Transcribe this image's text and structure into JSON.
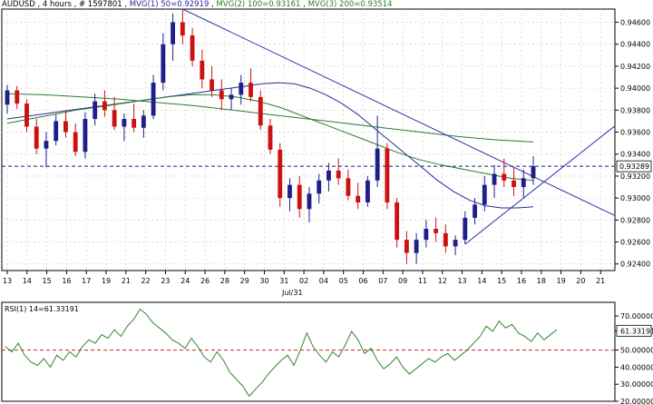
{
  "header": {
    "symbol": "AUDUSD",
    "timeframe": "4 hours",
    "bars_label": "# 1597801",
    "ma1_label": "MVG(1) 50=0.92919",
    "ma2_label": "MVG(2) 100=0.93161",
    "ma3_label": "MVG(3) 200=0.93514"
  },
  "colors": {
    "up": "#1f1f8a",
    "down": "#cc1111",
    "ma50": "#2a2a9a",
    "ma100": "#2d7a2d",
    "ma200": "#2d7a2d",
    "trendline": "#3333aa",
    "rsi": "#2d8a2d",
    "rsi_level": "#cc2222",
    "price_line": "#1f1f8a",
    "grid": "#c8c8c8",
    "frame": "#000000"
  },
  "chart_data": [
    {
      "type": "candlestick",
      "title": "AUDUSD , 4 hours , # 1597801",
      "x_tick_labels": [
        "13",
        "14",
        "15",
        "16",
        "17",
        "19",
        "21",
        "22",
        "23",
        "24",
        "26",
        "28",
        "29",
        "30",
        "31",
        "02",
        "04",
        "05",
        "06",
        "07",
        "09",
        "11",
        "12",
        "13",
        "14",
        "15",
        "16",
        "18",
        "19",
        "20",
        "21"
      ],
      "month_label": "Jul/31",
      "y_tick_labels": [
        "0.94600",
        "0.94400",
        "0.94200",
        "0.94000",
        "0.93800",
        "0.93600",
        "0.93400",
        "0.93200",
        "0.93000",
        "0.92800",
        "0.92600",
        "0.92400"
      ],
      "ylim": [
        0.9234,
        0.9472
      ],
      "last_price": "0.93289",
      "ohlc": [
        [
          0.9385,
          0.9403,
          0.9377,
          0.9398
        ],
        [
          0.9398,
          0.9402,
          0.9381,
          0.9386
        ],
        [
          0.9386,
          0.939,
          0.936,
          0.9365
        ],
        [
          0.9365,
          0.9372,
          0.934,
          0.9345
        ],
        [
          0.9345,
          0.936,
          0.9328,
          0.9352
        ],
        [
          0.9352,
          0.9376,
          0.9348,
          0.937
        ],
        [
          0.937,
          0.938,
          0.9355,
          0.936
        ],
        [
          0.936,
          0.9368,
          0.9338,
          0.9342
        ],
        [
          0.9342,
          0.9378,
          0.9336,
          0.9372
        ],
        [
          0.9372,
          0.9395,
          0.9366,
          0.9388
        ],
        [
          0.9388,
          0.9398,
          0.9374,
          0.938
        ],
        [
          0.938,
          0.9392,
          0.9362,
          0.9365
        ],
        [
          0.9365,
          0.9377,
          0.9352,
          0.9372
        ],
        [
          0.9372,
          0.9386,
          0.936,
          0.9364
        ],
        [
          0.9364,
          0.938,
          0.9355,
          0.9375
        ],
        [
          0.9375,
          0.9412,
          0.9372,
          0.9405
        ],
        [
          0.9405,
          0.945,
          0.9398,
          0.944
        ],
        [
          0.944,
          0.9468,
          0.9425,
          0.946
        ],
        [
          0.946,
          0.9472,
          0.944,
          0.9448
        ],
        [
          0.9448,
          0.9455,
          0.942,
          0.9425
        ],
        [
          0.9425,
          0.9435,
          0.94,
          0.9408
        ],
        [
          0.9408,
          0.942,
          0.9392,
          0.9398
        ],
        [
          0.9398,
          0.9408,
          0.938,
          0.939
        ],
        [
          0.939,
          0.94,
          0.938,
          0.9394
        ],
        [
          0.9394,
          0.9412,
          0.9385,
          0.9405
        ],
        [
          0.9405,
          0.9418,
          0.9388,
          0.9392
        ],
        [
          0.9392,
          0.9398,
          0.9362,
          0.9366
        ],
        [
          0.9366,
          0.9372,
          0.934,
          0.9344
        ],
        [
          0.9344,
          0.935,
          0.9292,
          0.93
        ],
        [
          0.93,
          0.9318,
          0.9288,
          0.9312
        ],
        [
          0.9312,
          0.932,
          0.9282,
          0.929
        ],
        [
          0.929,
          0.931,
          0.9278,
          0.9304
        ],
        [
          0.9304,
          0.9322,
          0.9295,
          0.9316
        ],
        [
          0.9316,
          0.9332,
          0.9306,
          0.9325
        ],
        [
          0.9325,
          0.9336,
          0.9312,
          0.9318
        ],
        [
          0.9318,
          0.9326,
          0.9298,
          0.9302
        ],
        [
          0.9302,
          0.9314,
          0.929,
          0.9296
        ],
        [
          0.9296,
          0.932,
          0.9292,
          0.9316
        ],
        [
          0.9316,
          0.9375,
          0.931,
          0.9345
        ],
        [
          0.9345,
          0.935,
          0.929,
          0.9296
        ],
        [
          0.9296,
          0.93,
          0.9255,
          0.9262
        ],
        [
          0.9262,
          0.927,
          0.924,
          0.925
        ],
        [
          0.925,
          0.9268,
          0.924,
          0.9262
        ],
        [
          0.9262,
          0.928,
          0.9255,
          0.9272
        ],
        [
          0.9272,
          0.9282,
          0.926,
          0.9268
        ],
        [
          0.9268,
          0.9276,
          0.925,
          0.9256
        ],
        [
          0.9256,
          0.9266,
          0.9248,
          0.9262
        ],
        [
          0.9262,
          0.9288,
          0.9258,
          0.9282
        ],
        [
          0.9282,
          0.93,
          0.9276,
          0.9294
        ],
        [
          0.9294,
          0.932,
          0.9288,
          0.9312
        ],
        [
          0.9312,
          0.933,
          0.93,
          0.9322
        ],
        [
          0.9322,
          0.9336,
          0.931,
          0.9316
        ],
        [
          0.9316,
          0.9328,
          0.9302,
          0.931
        ],
        [
          0.931,
          0.9326,
          0.93,
          0.9318
        ],
        [
          0.9318,
          0.9338,
          0.9312,
          0.9329
        ]
      ],
      "series": [
        {
          "name": "MVG(1) 50",
          "values": [
            0.9372,
            0.9374,
            0.9376,
            0.9378,
            0.938,
            0.9382,
            0.9384,
            0.9386,
            0.9388,
            0.939,
            0.9392,
            0.9394,
            0.9396,
            0.9398,
            0.94,
            0.9402,
            0.9404,
            0.9405,
            0.9404,
            0.94,
            0.9394,
            0.9386,
            0.9376,
            0.9364,
            0.9352,
            0.934,
            0.9328,
            0.9316,
            0.9306,
            0.9298,
            0.9293,
            0.9291,
            0.9291,
            0.9292
          ]
        },
        {
          "name": "MVG(2) 100",
          "values": [
            0.9368,
            0.9372,
            0.9376,
            0.938,
            0.9383,
            0.9386,
            0.9389,
            0.9392,
            0.9394,
            0.9394,
            0.9392,
            0.9388,
            0.9382,
            0.9374,
            0.9366,
            0.9358,
            0.935,
            0.9342,
            0.9335,
            0.933,
            0.9326,
            0.9322,
            0.9318,
            0.9316
          ]
        },
        {
          "name": "MVG(3) 200",
          "values": [
            0.9395,
            0.9394,
            0.9392,
            0.939,
            0.9387,
            0.9384,
            0.938,
            0.9376,
            0.9372,
            0.9368,
            0.9364,
            0.936,
            0.9356,
            0.9353,
            0.9351
          ]
        }
      ]
    },
    {
      "type": "line",
      "title": "RSI(1) 14=61.33191",
      "y_tick_labels": [
        "70.00000",
        "61.33191",
        "50.00000",
        "40.00000",
        "30.00000",
        "20.00000"
      ],
      "ylim": [
        20,
        78
      ],
      "level": 50,
      "series": [
        {
          "name": "RSI(1) 14",
          "values": [
            52,
            49,
            54,
            47,
            43,
            41,
            45,
            40,
            47,
            44,
            49,
            46,
            52,
            56,
            54,
            59,
            57,
            62,
            58,
            64,
            68,
            74,
            71,
            66,
            63,
            60,
            56,
            54,
            51,
            57,
            52,
            46,
            43,
            49,
            44,
            37,
            33,
            29,
            23,
            27,
            31,
            36,
            40,
            44,
            47,
            41,
            50,
            60,
            52,
            47,
            43,
            49,
            46,
            53,
            61,
            56,
            48,
            51,
            44,
            39,
            42,
            46,
            40,
            36,
            39,
            42,
            45,
            43,
            46,
            48,
            44,
            47,
            50,
            54,
            58,
            64,
            61,
            67,
            63,
            65,
            60,
            58,
            55,
            60,
            56,
            59,
            62
          ]
        }
      ]
    }
  ]
}
